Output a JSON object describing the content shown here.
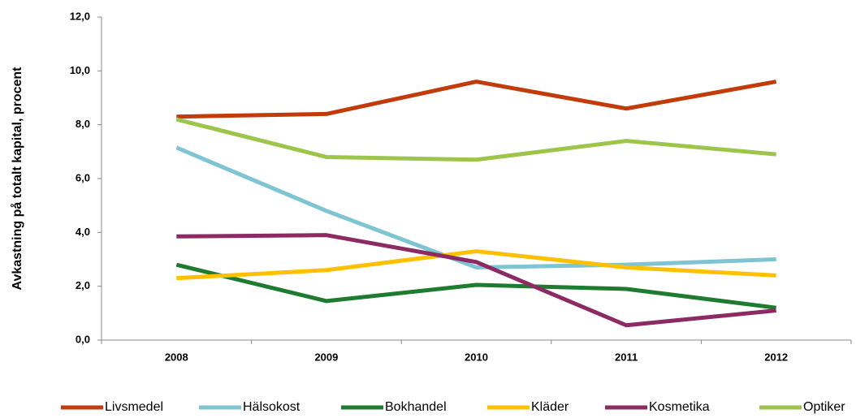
{
  "chart_data": {
    "type": "line",
    "y_label": "Avkastning på totalt kapital, procent",
    "categories": [
      "2008",
      "2009",
      "2010",
      "2011",
      "2012"
    ],
    "series": [
      {
        "name": "Livsmedel",
        "color": "#c23b0b",
        "values": [
          8.3,
          8.4,
          9.6,
          8.6,
          9.6
        ]
      },
      {
        "name": "Hälsokost",
        "color": "#7fc4d2",
        "values": [
          7.15,
          4.8,
          2.7,
          2.8,
          3.0
        ]
      },
      {
        "name": "Bokhandel",
        "color": "#1e7b30",
        "values": [
          2.8,
          1.45,
          2.05,
          1.9,
          1.2
        ]
      },
      {
        "name": "Kläder",
        "color": "#ffc000",
        "values": [
          2.3,
          2.6,
          3.3,
          2.7,
          2.4
        ]
      },
      {
        "name": "Kosmetika",
        "color": "#8b2a63",
        "values": [
          3.85,
          3.9,
          2.9,
          0.55,
          1.1
        ]
      },
      {
        "name": "Optiker",
        "color": "#9dc54b",
        "values": [
          8.2,
          6.8,
          6.7,
          7.4,
          6.9
        ]
      }
    ],
    "ylim": [
      0,
      12
    ],
    "yticks": [
      {
        "value": 0,
        "label": "0,0"
      },
      {
        "value": 2,
        "label": "2,0"
      },
      {
        "value": 4,
        "label": "4,0"
      },
      {
        "value": 6,
        "label": "6,0"
      },
      {
        "value": 8,
        "label": "8,0"
      },
      {
        "value": 10,
        "label": "10,0"
      },
      {
        "value": 12,
        "label": "12,0"
      }
    ],
    "legend": "bottom"
  }
}
